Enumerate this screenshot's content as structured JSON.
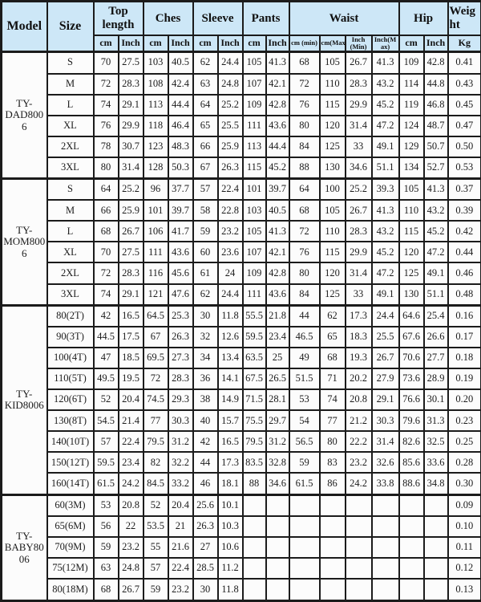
{
  "colors": {
    "header_bg": "#cde7f7",
    "cell_bg": "#fcfcfc",
    "border": "#1b1b1b"
  },
  "table": {
    "header": {
      "model": "Model",
      "size": "Size",
      "groups": [
        {
          "label": "Top length",
          "subs": [
            "cm",
            "Inch"
          ]
        },
        {
          "label": "Ches",
          "subs": [
            "cm",
            "Inch"
          ]
        },
        {
          "label": "Sleeve",
          "subs": [
            "cm",
            "Inch"
          ]
        },
        {
          "label": "Pants",
          "subs": [
            "cm",
            "Inch"
          ]
        },
        {
          "label": "Waist",
          "subs": [
            "cm (min)",
            "cm(Max)",
            "Inch (Min)",
            "Inch(Max)"
          ]
        },
        {
          "label": "Hip",
          "subs": [
            "cm",
            "Inch"
          ]
        },
        {
          "label": "Weight",
          "subs": [
            "Kg"
          ]
        }
      ]
    },
    "blocks": [
      {
        "model": "TY-DAD8006",
        "rows": [
          {
            "size": "S",
            "values": [
              "70",
              "27.5",
              "103",
              "40.5",
              "62",
              "24.4",
              "105",
              "41.3",
              "68",
              "105",
              "26.7",
              "41.3",
              "109",
              "42.8",
              "0.41"
            ]
          },
          {
            "size": "M",
            "values": [
              "72",
              "28.3",
              "108",
              "42.4",
              "63",
              "24.8",
              "107",
              "42.1",
              "72",
              "110",
              "28.3",
              "43.2",
              "114",
              "44.8",
              "0.43"
            ]
          },
          {
            "size": "L",
            "values": [
              "74",
              "29.1",
              "113",
              "44.4",
              "64",
              "25.2",
              "109",
              "42.8",
              "76",
              "115",
              "29.9",
              "45.2",
              "119",
              "46.8",
              "0.45"
            ]
          },
          {
            "size": "XL",
            "values": [
              "76",
              "29.9",
              "118",
              "46.4",
              "65",
              "25.5",
              "111",
              "43.6",
              "80",
              "120",
              "31.4",
              "47.2",
              "124",
              "48.7",
              "0.47"
            ]
          },
          {
            "size": "2XL",
            "values": [
              "78",
              "30.7",
              "123",
              "48.3",
              "66",
              "25.9",
              "113",
              "44.4",
              "84",
              "125",
              "33",
              "49.1",
              "129",
              "50.7",
              "0.50"
            ]
          },
          {
            "size": "3XL",
            "values": [
              "80",
              "31.4",
              "128",
              "50.3",
              "67",
              "26.3",
              "115",
              "45.2",
              "88",
              "130",
              "34.6",
              "51.1",
              "134",
              "52.7",
              "0.53"
            ]
          }
        ]
      },
      {
        "model": "TY-MOM8006",
        "rows": [
          {
            "size": "S",
            "values": [
              "64",
              "25.2",
              "96",
              "37.7",
              "57",
              "22.4",
              "101",
              "39.7",
              "64",
              "100",
              "25.2",
              "39.3",
              "105",
              "41.3",
              "0.37"
            ]
          },
          {
            "size": "M",
            "values": [
              "66",
              "25.9",
              "101",
              "39.7",
              "58",
              "22.8",
              "103",
              "40.5",
              "68",
              "105",
              "26.7",
              "41.3",
              "110",
              "43.2",
              "0.39"
            ]
          },
          {
            "size": "L",
            "values": [
              "68",
              "26.7",
              "106",
              "41.7",
              "59",
              "23.2",
              "105",
              "41.3",
              "72",
              "110",
              "28.3",
              "43.2",
              "115",
              "45.2",
              "0.42"
            ]
          },
          {
            "size": "XL",
            "values": [
              "70",
              "27.5",
              "111",
              "43.6",
              "60",
              "23.6",
              "107",
              "42.1",
              "76",
              "115",
              "29.9",
              "45.2",
              "120",
              "47.2",
              "0.44"
            ]
          },
          {
            "size": "2XL",
            "values": [
              "72",
              "28.3",
              "116",
              "45.6",
              "61",
              "24",
              "109",
              "42.8",
              "80",
              "120",
              "31.4",
              "47.2",
              "125",
              "49.1",
              "0.46"
            ]
          },
          {
            "size": "3XL",
            "values": [
              "74",
              "29.1",
              "121",
              "47.6",
              "62",
              "24.4",
              "111",
              "43.6",
              "84",
              "125",
              "33",
              "49.1",
              "130",
              "51.1",
              "0.48"
            ]
          }
        ]
      },
      {
        "model": "TY-KID8006",
        "rows": [
          {
            "size": "80(2T)",
            "values": [
              "42",
              "16.5",
              "64.5",
              "25.3",
              "30",
              "11.8",
              "55.5",
              "21.8",
              "44",
              "62",
              "17.3",
              "24.4",
              "64.6",
              "25.4",
              "0.16"
            ]
          },
          {
            "size": "90(3T)",
            "values": [
              "44.5",
              "17.5",
              "67",
              "26.3",
              "32",
              "12.6",
              "59.5",
              "23.4",
              "46.5",
              "65",
              "18.3",
              "25.5",
              "67.6",
              "26.6",
              "0.17"
            ]
          },
          {
            "size": "100(4T)",
            "values": [
              "47",
              "18.5",
              "69.5",
              "27.3",
              "34",
              "13.4",
              "63.5",
              "25",
              "49",
              "68",
              "19.3",
              "26.7",
              "70.6",
              "27.7",
              "0.18"
            ]
          },
          {
            "size": "110(5T)",
            "values": [
              "49.5",
              "19.5",
              "72",
              "28.3",
              "36",
              "14.1",
              "67.5",
              "26.5",
              "51.5",
              "71",
              "20.2",
              "27.9",
              "73.6",
              "28.9",
              "0.19"
            ]
          },
          {
            "size": "120(6T)",
            "values": [
              "52",
              "20.4",
              "74.5",
              "29.3",
              "38",
              "14.9",
              "71.5",
              "28.1",
              "53",
              "74",
              "20.8",
              "29.1",
              "76.6",
              "30.1",
              "0.20"
            ]
          },
          {
            "size": "130(8T)",
            "values": [
              "54.5",
              "21.4",
              "77",
              "30.3",
              "40",
              "15.7",
              "75.5",
              "29.7",
              "54",
              "77",
              "21.2",
              "30.3",
              "79.6",
              "31.3",
              "0.23"
            ]
          },
          {
            "size": "140(10T)",
            "values": [
              "57",
              "22.4",
              "79.5",
              "31.2",
              "42",
              "16.5",
              "79.5",
              "31.2",
              "56.5",
              "80",
              "22.2",
              "31.4",
              "82.6",
              "32.5",
              "0.25"
            ]
          },
          {
            "size": "150(12T)",
            "values": [
              "59.5",
              "23.4",
              "82",
              "32.2",
              "44",
              "17.3",
              "83.5",
              "32.8",
              "59",
              "83",
              "23.2",
              "32.6",
              "85.6",
              "33.6",
              "0.28"
            ]
          },
          {
            "size": "160(14T)",
            "values": [
              "61.5",
              "24.2",
              "84.5",
              "33.2",
              "46",
              "18.1",
              "88",
              "34.6",
              "61.5",
              "86",
              "24.2",
              "33.8",
              "88.6",
              "34.8",
              "0.30"
            ]
          }
        ]
      },
      {
        "model": "TY-BABY8006",
        "rows": [
          {
            "size": "60(3M)",
            "values": [
              "53",
              "20.8",
              "52",
              "20.4",
              "25.6",
              "10.1",
              "",
              "",
              "",
              "",
              "",
              "",
              "",
              "",
              "0.09"
            ]
          },
          {
            "size": "65(6M)",
            "values": [
              "56",
              "22",
              "53.5",
              "21",
              "26.3",
              "10.3",
              "",
              "",
              "",
              "",
              "",
              "",
              "",
              "",
              "0.10"
            ]
          },
          {
            "size": "70(9M)",
            "values": [
              "59",
              "23.2",
              "55",
              "21.6",
              "27",
              "10.6",
              "",
              "",
              "",
              "",
              "",
              "",
              "",
              "",
              "0.11"
            ]
          },
          {
            "size": "75(12M)",
            "values": [
              "63",
              "24.8",
              "57",
              "22.4",
              "28.5",
              "11.2",
              "",
              "",
              "",
              "",
              "",
              "",
              "",
              "",
              "0.12"
            ]
          },
          {
            "size": "80(18M)",
            "values": [
              "68",
              "26.7",
              "59",
              "23.2",
              "30",
              "11.8",
              "",
              "",
              "",
              "",
              "",
              "",
              "",
              "",
              "0.13"
            ]
          }
        ]
      }
    ]
  }
}
